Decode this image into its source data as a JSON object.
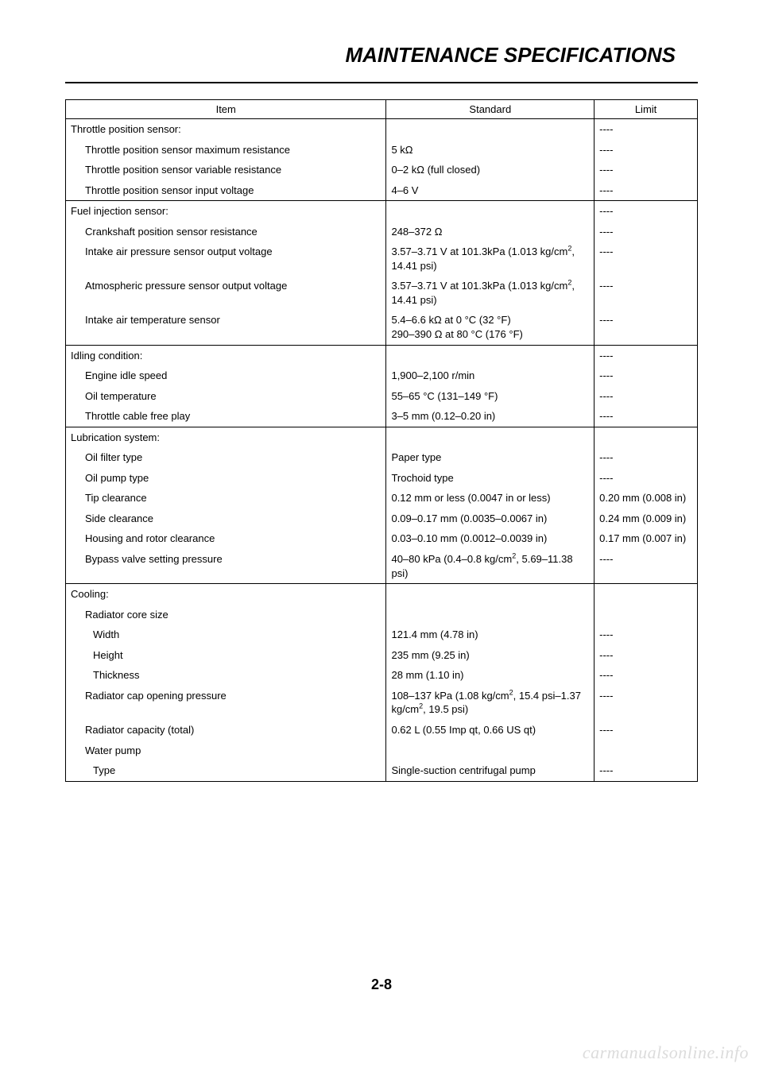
{
  "page": {
    "title": "MAINTENANCE SPECIFICATIONS",
    "number": "2-8",
    "watermark": "carmanualsonline.info"
  },
  "table": {
    "headers": {
      "item": "Item",
      "standard": "Standard",
      "limit": "Limit"
    },
    "sections": [
      {
        "header": {
          "item": "Throttle position sensor:",
          "std": "",
          "limit": "----"
        },
        "rows": [
          {
            "item": "Throttle position sensor maximum resistance",
            "std": "5 kΩ",
            "limit": "----",
            "indent": 1
          },
          {
            "item": "Throttle position sensor variable resistance",
            "std": "0–2 kΩ  (full closed)",
            "limit": "----",
            "indent": 1
          },
          {
            "item": "Throttle position sensor input voltage",
            "std": "4–6 V",
            "limit": "----",
            "indent": 1
          }
        ]
      },
      {
        "header": {
          "item": "Fuel injection sensor:",
          "std": "",
          "limit": "----"
        },
        "rows": [
          {
            "item": "Crankshaft position sensor resistance",
            "std": "248–372 Ω",
            "limit": "----",
            "indent": 1
          },
          {
            "item": "Intake air pressure sensor output voltage",
            "std_html": "3.57–3.71 V at 101.3kPa (1.013 kg/cm<sup>2</sup>, 14.41 psi)",
            "limit": "----",
            "indent": 1
          },
          {
            "item": "Atmospheric pressure sensor output voltage",
            "std_html": "3.57–3.71 V at 101.3kPa (1.013 kg/cm<sup>2</sup>, 14.41 psi)",
            "limit": "----",
            "indent": 1
          },
          {
            "item": "Intake air temperature sensor",
            "std": "5.4–6.6 kΩ at 0 °C (32 °F)\n290–390 Ω at 80 °C (176 °F)",
            "limit": "----",
            "indent": 1
          }
        ]
      },
      {
        "header": {
          "item": "Idling condition:",
          "std": "",
          "limit": "----"
        },
        "rows": [
          {
            "item": "Engine idle speed",
            "std": "1,900–2,100 r/min",
            "limit": "----",
            "indent": 1
          },
          {
            "item": "Oil temperature",
            "std": "55–65 °C (131–149 °F)",
            "limit": "----",
            "indent": 1
          },
          {
            "item": "Throttle cable free play",
            "std": "3–5 mm (0.12–0.20 in)",
            "limit": "----",
            "indent": 1
          }
        ]
      },
      {
        "header": {
          "item": "Lubrication system:",
          "std": "",
          "limit": ""
        },
        "rows": [
          {
            "item": "Oil filter type",
            "std": "Paper type",
            "limit": "----",
            "indent": 1
          },
          {
            "item": "Oil pump type",
            "std": "Trochoid type",
            "limit": "----",
            "indent": 1
          },
          {
            "item": "Tip clearance",
            "std": "0.12 mm or less (0.0047 in or less)",
            "limit": "0.20 mm (0.008 in)",
            "indent": 1
          },
          {
            "item": "Side clearance",
            "std": "0.09–0.17 mm (0.0035–0.0067 in)",
            "limit": "0.24 mm (0.009 in)",
            "indent": 1
          },
          {
            "item": "Housing and rotor clearance",
            "std": "0.03–0.10 mm (0.0012–0.0039 in)",
            "limit": "0.17 mm (0.007 in)",
            "indent": 1
          },
          {
            "item": "Bypass valve setting pressure",
            "std_html": "40–80 kPa (0.4–0.8 kg/cm<sup>2</sup>, 5.69–11.38 psi)",
            "limit": "----",
            "indent": 1
          }
        ]
      },
      {
        "header": {
          "item": "Cooling:",
          "std": "",
          "limit": ""
        },
        "rows": [
          {
            "item": "Radiator core size",
            "std": "",
            "limit": "",
            "indent": 1
          },
          {
            "item": "Width",
            "std": "121.4 mm (4.78 in)",
            "limit": "----",
            "indent": 2
          },
          {
            "item": "Height",
            "std": "235 mm (9.25 in)",
            "limit": "----",
            "indent": 2
          },
          {
            "item": "Thickness",
            "std": "28 mm (1.10 in)",
            "limit": "----",
            "indent": 2
          },
          {
            "item": "Radiator cap opening pressure",
            "std_html": "108–137 kPa (1.08 kg/cm<sup>2</sup>, 15.4 psi–1.37 kg/cm<sup>2</sup>, 19.5 psi)",
            "limit": "----",
            "indent": 1
          },
          {
            "item": "Radiator capacity (total)",
            "std": "0.62 L (0.55 Imp qt, 0.66 US qt)",
            "limit": "----",
            "indent": 1
          },
          {
            "item": "Water pump",
            "std": "",
            "limit": "",
            "indent": 1
          },
          {
            "item": "Type",
            "std": "Single-suction centrifugal pump",
            "limit": "----",
            "indent": 2
          }
        ]
      }
    ]
  }
}
